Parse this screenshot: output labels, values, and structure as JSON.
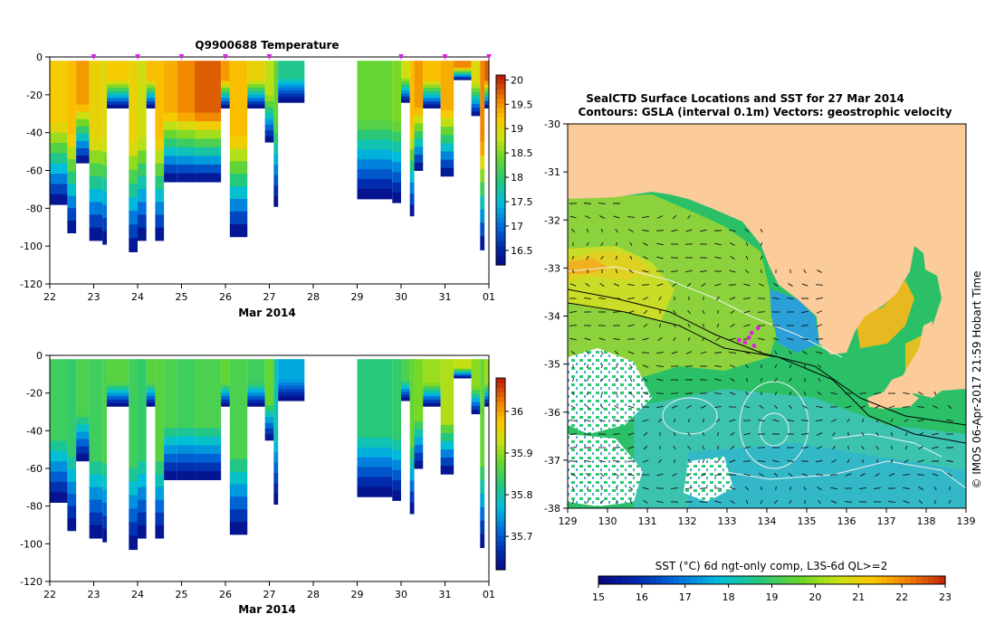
{
  "chart_data": [
    {
      "type": "heatmap",
      "title": "Q9900688  Temperature",
      "xlabel": "Mar 2014",
      "ylabel": "",
      "x_ticks": [
        "22",
        "23",
        "24",
        "25",
        "26",
        "27",
        "28",
        "29",
        "30",
        "31",
        "01"
      ],
      "x_range": [
        22,
        32
      ],
      "y_ticks": [
        "0",
        "-20",
        "-40",
        "-60",
        "-80",
        "-100",
        "-120"
      ],
      "ylim": [
        -120,
        0
      ],
      "colorbar_ticks": [
        "20",
        "19.5",
        "19",
        "18.5",
        "18",
        "17.5",
        "17",
        "16.5"
      ],
      "colorbar_range": [
        16.2,
        20.1
      ],
      "profile_markers": [
        23.0,
        24.0,
        25.0,
        26.0,
        27.0,
        30.0,
        31.0,
        32.0
      ],
      "profiles": [
        {
          "x0": 22.0,
          "x1": 22.4,
          "bottom": -78,
          "surface": 19.2
        },
        {
          "x0": 22.4,
          "x1": 22.6,
          "bottom": -93,
          "surface": 19.3
        },
        {
          "x0": 22.6,
          "x1": 22.9,
          "bottom": -56,
          "surface": 19.5
        },
        {
          "x0": 22.9,
          "x1": 23.2,
          "bottom": -97,
          "surface": 19.1
        },
        {
          "x0": 23.2,
          "x1": 23.3,
          "bottom": -99,
          "surface": 19.0
        },
        {
          "x0": 23.3,
          "x1": 23.8,
          "bottom": -27,
          "surface": 19.2
        },
        {
          "x0": 23.8,
          "x1": 24.0,
          "bottom": -103,
          "surface": 19.1
        },
        {
          "x0": 24.0,
          "x1": 24.2,
          "bottom": -97,
          "surface": 18.9
        },
        {
          "x0": 24.2,
          "x1": 24.4,
          "bottom": -27,
          "surface": 19.3
        },
        {
          "x0": 24.4,
          "x1": 24.6,
          "bottom": -97,
          "surface": 19.3
        },
        {
          "x0": 24.6,
          "x1": 24.9,
          "bottom": -66,
          "surface": 19.4
        },
        {
          "x0": 24.9,
          "x1": 25.3,
          "bottom": -66,
          "surface": 19.6
        },
        {
          "x0": 25.3,
          "x1": 25.9,
          "bottom": -66,
          "surface": 19.8
        },
        {
          "x0": 25.9,
          "x1": 26.1,
          "bottom": -27,
          "surface": 19.5
        },
        {
          "x0": 26.1,
          "x1": 26.5,
          "bottom": -95,
          "surface": 19.3
        },
        {
          "x0": 26.5,
          "x1": 26.9,
          "bottom": -27,
          "surface": 19.1
        },
        {
          "x0": 26.9,
          "x1": 27.1,
          "bottom": -45,
          "surface": 18.8
        },
        {
          "x0": 27.1,
          "x1": 27.2,
          "bottom": -79,
          "surface": 18.4
        },
        {
          "x0": 27.2,
          "x1": 27.8,
          "bottom": -24,
          "surface": 17.9
        },
        {
          "x0": 29.0,
          "x1": 29.8,
          "bottom": -75,
          "surface": 18.4
        },
        {
          "x0": 29.8,
          "x1": 30.0,
          "bottom": -77,
          "surface": 18.5
        },
        {
          "x0": 30.0,
          "x1": 30.2,
          "bottom": -24,
          "surface": 18.9
        },
        {
          "x0": 30.2,
          "x1": 30.3,
          "bottom": -84,
          "surface": 19.3
        },
        {
          "x0": 30.3,
          "x1": 30.5,
          "bottom": -60,
          "surface": 19.5
        },
        {
          "x0": 30.5,
          "x1": 30.9,
          "bottom": -27,
          "surface": 19.3
        },
        {
          "x0": 30.9,
          "x1": 31.2,
          "bottom": -63,
          "surface": 19.4
        },
        {
          "x0": 31.2,
          "x1": 31.6,
          "bottom": -12,
          "surface": 19.6
        },
        {
          "x0": 31.6,
          "x1": 31.8,
          "bottom": -31,
          "surface": 19.0
        },
        {
          "x0": 31.8,
          "x1": 31.9,
          "bottom": -102,
          "surface": 19.6
        },
        {
          "x0": 31.9,
          "x1": 32.0,
          "bottom": -27,
          "surface": 19.8
        }
      ]
    },
    {
      "type": "heatmap",
      "title": "",
      "xlabel": "Mar 2014",
      "ylabel": "",
      "x_ticks": [
        "22",
        "23",
        "24",
        "25",
        "26",
        "27",
        "28",
        "29",
        "30",
        "31",
        "01"
      ],
      "x_range": [
        22,
        32
      ],
      "y_ticks": [
        "0",
        "-20",
        "-40",
        "-60",
        "-80",
        "-100",
        "-120"
      ],
      "ylim": [
        -120,
        0
      ],
      "colorbar_ticks": [
        "36",
        "35.9",
        "35.8",
        "35.7"
      ],
      "colorbar_range": [
        35.62,
        36.08
      ],
      "profiles": [
        {
          "x0": 22.0,
          "x1": 22.4,
          "bottom": -78,
          "surface": 35.85
        },
        {
          "x0": 22.4,
          "x1": 22.6,
          "bottom": -93,
          "surface": 35.84
        },
        {
          "x0": 22.6,
          "x1": 22.9,
          "bottom": -56,
          "surface": 35.86
        },
        {
          "x0": 22.9,
          "x1": 23.2,
          "bottom": -97,
          "surface": 35.85
        },
        {
          "x0": 23.2,
          "x1": 23.3,
          "bottom": -99,
          "surface": 35.86
        },
        {
          "x0": 23.3,
          "x1": 23.8,
          "bottom": -27,
          "surface": 35.87
        },
        {
          "x0": 23.8,
          "x1": 24.0,
          "bottom": -103,
          "surface": 35.85
        },
        {
          "x0": 24.0,
          "x1": 24.2,
          "bottom": -97,
          "surface": 35.84
        },
        {
          "x0": 24.2,
          "x1": 24.4,
          "bottom": -27,
          "surface": 35.87
        },
        {
          "x0": 24.4,
          "x1": 24.6,
          "bottom": -97,
          "surface": 35.87
        },
        {
          "x0": 24.6,
          "x1": 24.9,
          "bottom": -66,
          "surface": 35.86
        },
        {
          "x0": 24.9,
          "x1": 25.3,
          "bottom": -66,
          "surface": 35.85
        },
        {
          "x0": 25.3,
          "x1": 25.9,
          "bottom": -66,
          "surface": 35.86
        },
        {
          "x0": 25.9,
          "x1": 26.1,
          "bottom": -27,
          "surface": 35.88
        },
        {
          "x0": 26.1,
          "x1": 26.5,
          "bottom": -95,
          "surface": 35.86
        },
        {
          "x0": 26.5,
          "x1": 26.9,
          "bottom": -27,
          "surface": 35.85
        },
        {
          "x0": 26.9,
          "x1": 27.1,
          "bottom": -45,
          "surface": 35.88
        },
        {
          "x0": 27.1,
          "x1": 27.2,
          "bottom": -79,
          "surface": 35.8
        },
        {
          "x0": 27.2,
          "x1": 27.8,
          "bottom": -24,
          "surface": 35.76
        },
        {
          "x0": 29.0,
          "x1": 29.8,
          "bottom": -75,
          "surface": 35.83
        },
        {
          "x0": 29.8,
          "x1": 30.0,
          "bottom": -77,
          "surface": 35.84
        },
        {
          "x0": 30.0,
          "x1": 30.2,
          "bottom": -24,
          "surface": 35.86
        },
        {
          "x0": 30.2,
          "x1": 30.3,
          "bottom": -84,
          "surface": 35.88
        },
        {
          "x0": 30.3,
          "x1": 30.5,
          "bottom": -60,
          "surface": 35.89
        },
        {
          "x0": 30.5,
          "x1": 30.9,
          "bottom": -27,
          "surface": 35.91
        },
        {
          "x0": 30.9,
          "x1": 31.2,
          "bottom": -63,
          "surface": 35.92
        },
        {
          "x0": 31.2,
          "x1": 31.6,
          "bottom": -12,
          "surface": 35.93
        },
        {
          "x0": 31.6,
          "x1": 31.8,
          "bottom": -31,
          "surface": 35.9
        },
        {
          "x0": 31.8,
          "x1": 31.9,
          "bottom": -102,
          "surface": 35.88
        },
        {
          "x0": 31.9,
          "x1": 32.0,
          "bottom": -27,
          "surface": 35.91
        }
      ]
    },
    {
      "type": "heatmap",
      "title": "SealCTD Surface Locations and SST for 27 Mar 2014",
      "subtitle": "Contours: GSLA (interval 0.1m) Vectors: geostrophic velocity",
      "xlabel": "",
      "ylabel": "",
      "x_ticks": [
        "129",
        "130",
        "131",
        "132",
        "133",
        "134",
        "135",
        "136",
        "137",
        "138",
        "139"
      ],
      "xlim": [
        129,
        139
      ],
      "y_ticks": [
        "-30",
        "-31",
        "-32",
        "-33",
        "-34",
        "-35",
        "-36",
        "-37",
        "-38"
      ],
      "ylim": [
        -38,
        -30
      ],
      "side_label": "© IMOS 06-Apr-2017 21:59 Hobart Time",
      "colorbar_label": "SST (°C) 6d ngt-only comp, L3S-6d QL>=2",
      "colorbar_ticks": [
        "15",
        "16",
        "17",
        "18",
        "19",
        "20",
        "21",
        "22",
        "23"
      ],
      "colorbar_range": [
        15,
        23
      ],
      "seal_locations": [
        {
          "lon": 133.45,
          "lat": -34.55
        },
        {
          "lon": 133.55,
          "lat": -34.45
        },
        {
          "lon": 133.62,
          "lat": -34.35
        },
        {
          "lon": 133.68,
          "lat": -34.62
        },
        {
          "lon": 133.78,
          "lat": -34.25
        },
        {
          "lon": 133.3,
          "lat": -34.5
        }
      ],
      "colors": {
        "land": "#FBCB9A",
        "cloud": "#FFFFFF",
        "marker": "#E020E0"
      }
    }
  ]
}
